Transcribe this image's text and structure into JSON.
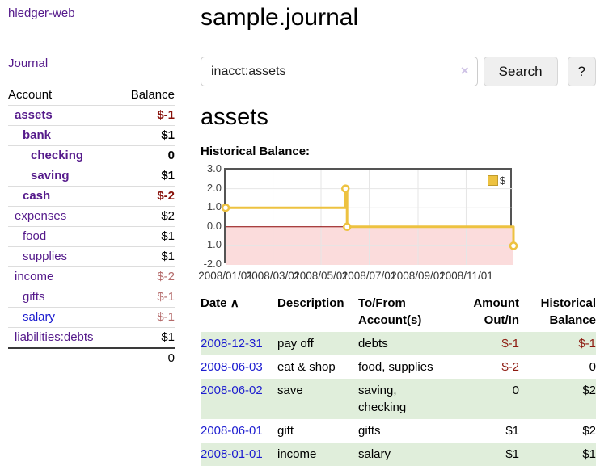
{
  "app": {
    "brand": "hledger-web"
  },
  "sidebar": {
    "journal_link": "Journal",
    "accounts": {
      "header": {
        "account": "Account",
        "balance": "Balance"
      },
      "rows": [
        {
          "name": "assets",
          "balance": "$-1"
        },
        {
          "name": "bank",
          "balance": "$1"
        },
        {
          "name": "checking",
          "balance": "0"
        },
        {
          "name": "saving",
          "balance": "$1"
        },
        {
          "name": "cash",
          "balance": "$-2"
        },
        {
          "name": "expenses",
          "balance": "$2"
        },
        {
          "name": "food",
          "balance": "$1"
        },
        {
          "name": "supplies",
          "balance": "$1"
        },
        {
          "name": "income",
          "balance": "$-2"
        },
        {
          "name": "gifts",
          "balance": "$-1"
        },
        {
          "name": "salary",
          "balance": "$-1"
        },
        {
          "name": "liabilities:debts",
          "balance": "$1"
        }
      ],
      "total": "0"
    }
  },
  "main": {
    "title": "sample.journal",
    "search": {
      "value": "inacct:assets",
      "clear_icon": "×",
      "button": "Search",
      "help_button": "?"
    },
    "heading": "assets"
  },
  "chart_data": {
    "type": "line",
    "title": "Historical Balance:",
    "series": [
      {
        "name": "$",
        "color": "#EDC240",
        "step": true,
        "points": [
          [
            "2008/01/01",
            1
          ],
          [
            "2008/06/01",
            2
          ],
          [
            "2008/06/03",
            0
          ],
          [
            "2008/12/31",
            -1
          ]
        ]
      }
    ],
    "x_min": "2008/01/01",
    "x_max": "2008/12/31",
    "ylim": [
      -2,
      3
    ],
    "x_ticks": [
      "2008/01/01",
      "2008/03/01",
      "2008/05/01",
      "2008/07/01",
      "2008/09/01",
      "2008/11/01"
    ],
    "y_ticks": [
      "3.0",
      "2.0",
      "1.0",
      "0.0",
      "-1.0",
      "-2.0"
    ],
    "grid_color": "#e6e6e6",
    "negative_fill": "#fbdcdc",
    "zero_line": "#8b0000",
    "legend": {
      "label": "$",
      "position": "top-right"
    }
  },
  "register": {
    "header": {
      "date": "Date",
      "sort_icon": "∧",
      "description": "Description",
      "accounts": "To/From Account(s)",
      "amount": "Amount Out/In",
      "balance": "Historical Balance"
    },
    "rows": [
      {
        "date": "2008-12-31",
        "description": "pay off",
        "accounts": "debts",
        "amount": "$-1",
        "balance": "$-1"
      },
      {
        "date": "2008-06-03",
        "description": "eat & shop",
        "accounts": "food, supplies",
        "amount": "$-2",
        "balance": "0"
      },
      {
        "date": "2008-06-02",
        "description": "save",
        "accounts": "saving, checking",
        "amount": "0",
        "balance": "$2"
      },
      {
        "date": "2008-06-01",
        "description": "gift",
        "accounts": "gifts",
        "amount": "$1",
        "balance": "$2"
      },
      {
        "date": "2008-01-01",
        "description": "income",
        "accounts": "salary",
        "amount": "$1",
        "balance": "$1"
      }
    ]
  }
}
